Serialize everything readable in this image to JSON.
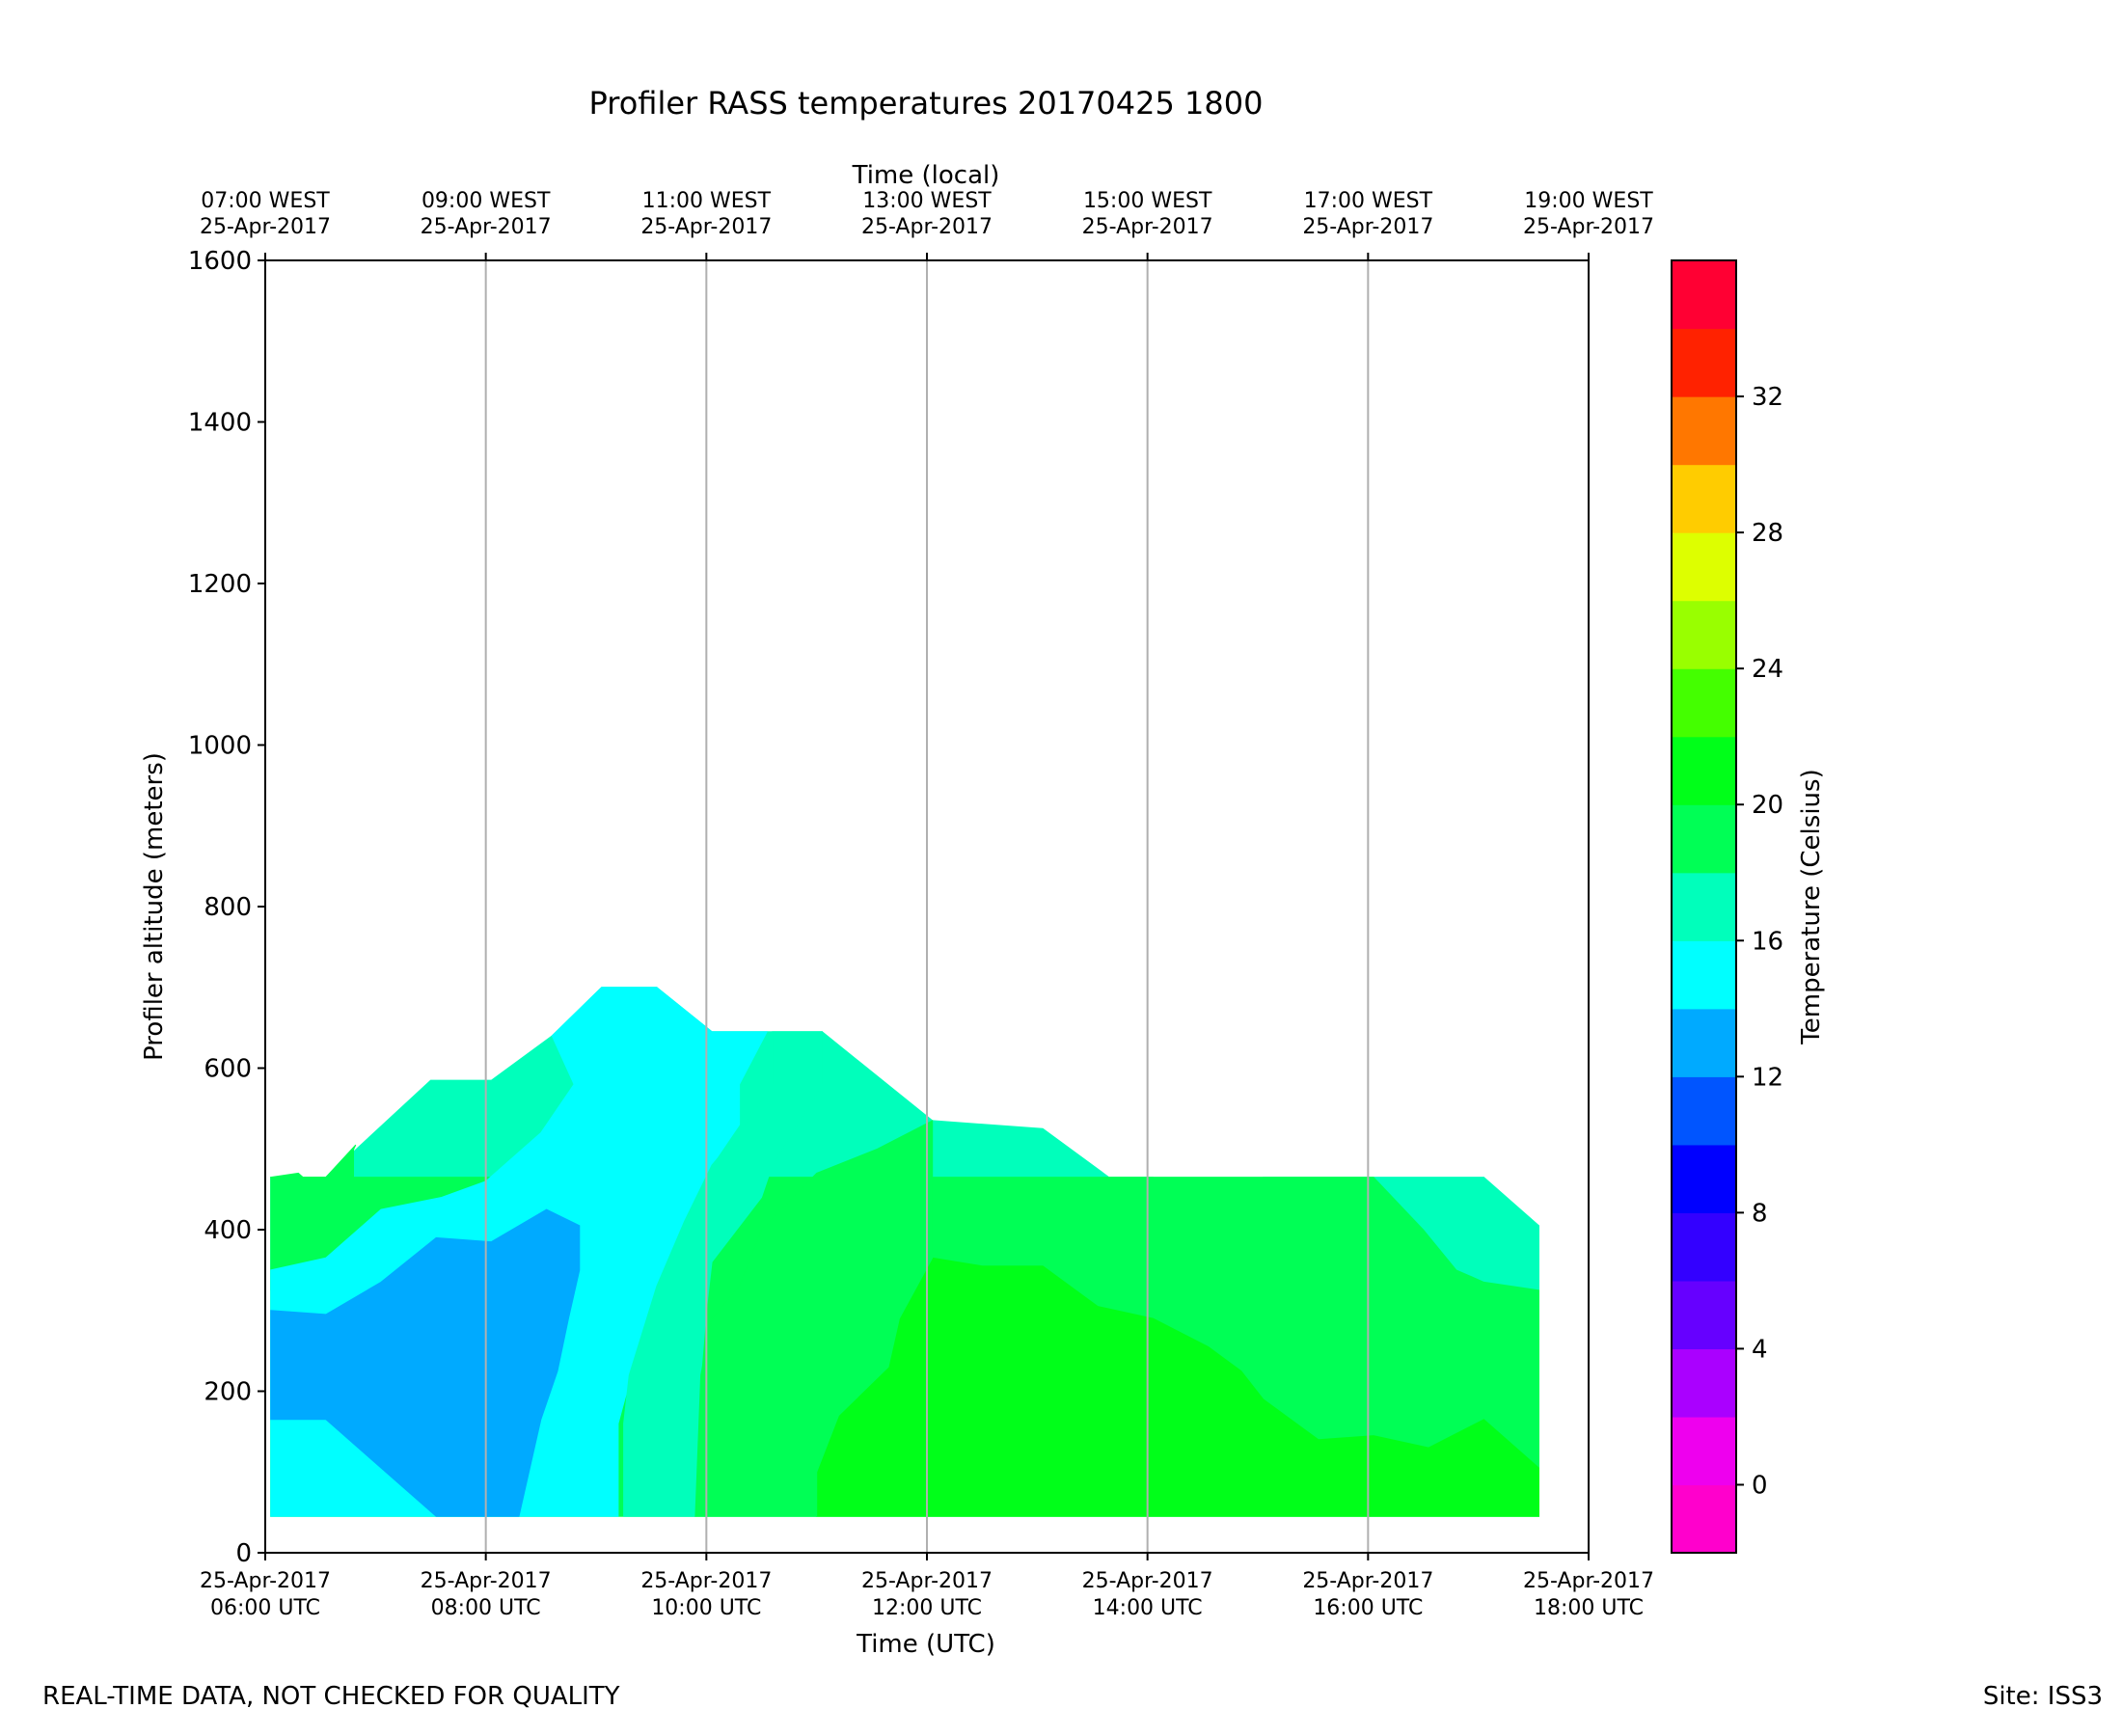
{
  "chart_data": {
    "type": "filled-contour",
    "title": "Profiler RASS temperatures 20170425 1800",
    "xlabel": "Time (UTC)",
    "x2label": "Time (local)",
    "ylabel": "Profiler altitude (meters)",
    "colorbar_label": "Temperature (Celsius)",
    "xlim_hours_utc": [
      6,
      18
    ],
    "ylim": [
      0,
      1600
    ],
    "yticks": [
      0,
      200,
      400,
      600,
      800,
      1000,
      1200,
      1400,
      1600
    ],
    "xticks_utc": [
      {
        "hour": 6,
        "date": "25-Apr-2017",
        "time": "06:00 UTC"
      },
      {
        "hour": 8,
        "date": "25-Apr-2017",
        "time": "08:00 UTC"
      },
      {
        "hour": 10,
        "date": "25-Apr-2017",
        "time": "10:00 UTC"
      },
      {
        "hour": 12,
        "date": "25-Apr-2017",
        "time": "12:00 UTC"
      },
      {
        "hour": 14,
        "date": "25-Apr-2017",
        "time": "14:00 UTC"
      },
      {
        "hour": 16,
        "date": "25-Apr-2017",
        "time": "16:00 UTC"
      },
      {
        "hour": 18,
        "date": "25-Apr-2017",
        "time": "18:00 UTC"
      }
    ],
    "xticks_local": [
      {
        "hour": 6,
        "time": "07:00 WEST",
        "date": "25-Apr-2017"
      },
      {
        "hour": 8,
        "time": "09:00 WEST",
        "date": "25-Apr-2017"
      },
      {
        "hour": 10,
        "time": "11:00 WEST",
        "date": "25-Apr-2017"
      },
      {
        "hour": 12,
        "time": "13:00 WEST",
        "date": "25-Apr-2017"
      },
      {
        "hour": 14,
        "time": "15:00 WEST",
        "date": "25-Apr-2017"
      },
      {
        "hour": 16,
        "time": "17:00 WEST",
        "date": "25-Apr-2017"
      },
      {
        "hour": 18,
        "time": "19:00 WEST",
        "date": "25-Apr-2017"
      }
    ],
    "gridlines_hours": [
      8,
      10,
      12,
      14,
      16
    ],
    "levels": [
      {
        "from": -2,
        "to": 0,
        "color": "#ff00cc"
      },
      {
        "from": 0,
        "to": 2,
        "color": "#ee00ee"
      },
      {
        "from": 2,
        "to": 4,
        "color": "#aa00ff"
      },
      {
        "from": 4,
        "to": 6,
        "color": "#6600ff"
      },
      {
        "from": 6,
        "to": 8,
        "color": "#3300ff"
      },
      {
        "from": 8,
        "to": 10,
        "color": "#0000ff"
      },
      {
        "from": 10,
        "to": 12,
        "color": "#0055ff"
      },
      {
        "from": 12,
        "to": 14,
        "color": "#00aaff"
      },
      {
        "from": 14,
        "to": 16,
        "color": "#00ffff"
      },
      {
        "from": 16,
        "to": 18,
        "color": "#00ffbb"
      },
      {
        "from": 18,
        "to": 20,
        "color": "#00ff55"
      },
      {
        "from": 20,
        "to": 22,
        "color": "#00ff19"
      },
      {
        "from": 22,
        "to": 24,
        "color": "#44ff00"
      },
      {
        "from": 24,
        "to": 26,
        "color": "#99ff00"
      },
      {
        "from": 26,
        "to": 28,
        "color": "#ddff00"
      },
      {
        "from": 28,
        "to": 30,
        "color": "#ffcc00"
      },
      {
        "from": 30,
        "to": 32,
        "color": "#ff7700"
      },
      {
        "from": 32,
        "to": 34,
        "color": "#ff2200"
      },
      {
        "from": 34,
        "to": 36,
        "color": "#ff0033"
      }
    ],
    "colorbar_ticks": [
      {
        "value": 0,
        "label": "0"
      },
      {
        "value": 4,
        "label": "4"
      },
      {
        "value": 8,
        "label": "8"
      },
      {
        "value": 12,
        "label": "12"
      },
      {
        "value": 16,
        "label": "16"
      },
      {
        "value": 20,
        "label": "20"
      },
      {
        "value": 24,
        "label": "24"
      },
      {
        "value": 28,
        "label": "28"
      },
      {
        "value": 32,
        "label": "32"
      }
    ],
    "regions": [
      {
        "name": "band-17C",
        "color": "#00ffbb",
        "points": [
          [
            6.05,
            465
          ],
          [
            6.55,
            465
          ],
          [
            7.5,
            585
          ],
          [
            8.05,
            585
          ],
          [
            8.6,
            640
          ],
          [
            9.05,
            700
          ],
          [
            9.55,
            700
          ],
          [
            10.05,
            645
          ],
          [
            11.05,
            645
          ],
          [
            12.05,
            535
          ],
          [
            13.05,
            525
          ],
          [
            13.65,
            465
          ],
          [
            14.05,
            465
          ],
          [
            14.5,
            405
          ],
          [
            15.05,
            465
          ],
          [
            17.05,
            465
          ],
          [
            17.55,
            405
          ],
          [
            17.55,
            325
          ],
          [
            6.05,
            325
          ]
        ]
      },
      {
        "name": "band-19C",
        "color": "#00ff55",
        "points": [
          [
            6.05,
            465
          ],
          [
            6.55,
            465
          ],
          [
            6.8,
            500
          ],
          [
            6.8,
            465
          ],
          [
            16.05,
            465
          ],
          [
            16.5,
            400
          ],
          [
            16.8,
            350
          ],
          [
            17.05,
            335
          ],
          [
            17.55,
            325
          ],
          [
            17.55,
            45
          ],
          [
            6.05,
            45
          ]
        ]
      },
      {
        "name": "band-19C-upper-wedge",
        "color": "#00ff55",
        "points": [
          [
            6.05,
            465
          ],
          [
            6.55,
            465
          ],
          [
            6.82,
            505
          ],
          [
            6.7,
            470
          ],
          [
            6.55,
            440
          ],
          [
            6.3,
            470
          ]
        ]
      },
      {
        "name": "band-15C",
        "color": "#00ffff",
        "points": [
          [
            6.05,
            350
          ],
          [
            6.55,
            365
          ],
          [
            7.05,
            425
          ],
          [
            7.6,
            440
          ],
          [
            8.0,
            460
          ],
          [
            8.5,
            520
          ],
          [
            8.8,
            580
          ],
          [
            8.6,
            640
          ],
          [
            9.05,
            700
          ],
          [
            9.55,
            700
          ],
          [
            10.05,
            645
          ],
          [
            10.55,
            645
          ],
          [
            10.3,
            580
          ],
          [
            10.3,
            530
          ],
          [
            10.05,
            480
          ],
          [
            9.8,
            400
          ],
          [
            9.55,
            320
          ],
          [
            9.3,
            210
          ],
          [
            9.2,
            160
          ],
          [
            9.2,
            45
          ],
          [
            6.05,
            45
          ]
        ]
      },
      {
        "name": "band-17C-lower",
        "color": "#00ffbb",
        "points": [
          [
            9.25,
            45
          ],
          [
            9.25,
            160
          ],
          [
            9.3,
            220
          ],
          [
            9.55,
            330
          ],
          [
            9.8,
            410
          ],
          [
            10.05,
            480
          ],
          [
            10.3,
            520
          ],
          [
            10.6,
            580
          ],
          [
            10.6,
            645
          ],
          [
            11.05,
            645
          ],
          [
            11.05,
            580
          ],
          [
            10.6,
            480
          ],
          [
            10.5,
            440
          ],
          [
            10.05,
            360
          ],
          [
            10.0,
            300
          ],
          [
            9.95,
            220
          ],
          [
            9.9,
            45
          ]
        ]
      },
      {
        "name": "band-13C",
        "color": "#00aaff",
        "points": [
          [
            6.05,
            300
          ],
          [
            6.55,
            295
          ],
          [
            7.05,
            335
          ],
          [
            7.55,
            390
          ],
          [
            8.05,
            385
          ],
          [
            8.55,
            425
          ],
          [
            8.85,
            405
          ],
          [
            8.85,
            350
          ],
          [
            8.75,
            290
          ],
          [
            8.65,
            225
          ],
          [
            8.5,
            165
          ],
          [
            8.3,
            45
          ],
          [
            7.55,
            45
          ],
          [
            6.55,
            165
          ],
          [
            6.05,
            165
          ]
        ]
      },
      {
        "name": "band-21C",
        "color": "#00ff19",
        "points": [
          [
            11.0,
            45
          ],
          [
            11.0,
            100
          ],
          [
            11.2,
            170
          ],
          [
            11.65,
            230
          ],
          [
            11.75,
            290
          ],
          [
            12.05,
            365
          ],
          [
            12.5,
            355
          ],
          [
            13.05,
            355
          ],
          [
            13.55,
            305
          ],
          [
            14.05,
            290
          ],
          [
            14.55,
            255
          ],
          [
            14.85,
            225
          ],
          [
            15.05,
            190
          ],
          [
            15.55,
            140
          ],
          [
            16.05,
            145
          ],
          [
            16.55,
            130
          ],
          [
            17.05,
            165
          ],
          [
            17.55,
            105
          ],
          [
            17.55,
            45
          ]
        ]
      },
      {
        "name": "band-19C-mid",
        "color": "#00ff55",
        "points": [
          [
            9.9,
            45
          ],
          [
            9.95,
            220
          ],
          [
            10.05,
            290
          ],
          [
            10.3,
            330
          ],
          [
            10.5,
            400
          ],
          [
            11.0,
            470
          ],
          [
            11.55,
            500
          ],
          [
            12.05,
            535
          ],
          [
            12.05,
            365
          ],
          [
            11.75,
            290
          ],
          [
            11.65,
            230
          ],
          [
            11.2,
            170
          ],
          [
            11.0,
            100
          ],
          [
            11.0,
            45
          ]
        ]
      }
    ]
  },
  "footer": {
    "left": "REAL-TIME DATA, NOT CHECKED FOR QUALITY",
    "right": "Site: ISS3"
  }
}
